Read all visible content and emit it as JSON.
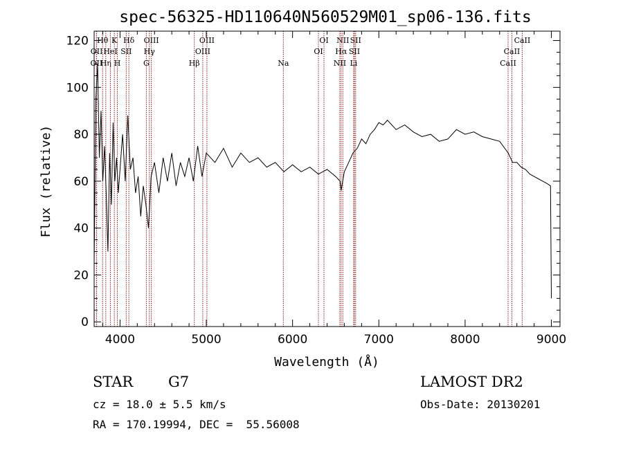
{
  "chart_data": {
    "type": "line",
    "title": "spec-56325-HD110640N560529M01_sp06-136.fits",
    "xlabel": "Wavelength (Å)",
    "ylabel": "Flux (relative)",
    "xlim": [
      3700,
      9100
    ],
    "ylim": [
      -2,
      124
    ],
    "xticks": [
      4000,
      5000,
      6000,
      7000,
      8000,
      9000
    ],
    "yticks": [
      0,
      20,
      40,
      60,
      80,
      100,
      120
    ],
    "series": [
      {
        "name": "flux",
        "x": [
          3700,
          3720,
          3740,
          3760,
          3780,
          3800,
          3820,
          3840,
          3860,
          3880,
          3900,
          3920,
          3940,
          3960,
          3980,
          4000,
          4030,
          4060,
          4090,
          4120,
          4150,
          4180,
          4210,
          4240,
          4270,
          4300,
          4330,
          4360,
          4400,
          4450,
          4500,
          4550,
          4600,
          4650,
          4700,
          4750,
          4800,
          4850,
          4900,
          4950,
          5000,
          5100,
          5200,
          5300,
          5400,
          5500,
          5600,
          5700,
          5800,
          5900,
          6000,
          6100,
          6200,
          6300,
          6400,
          6500,
          6550,
          6563,
          6600,
          6650,
          6700,
          6750,
          6800,
          6850,
          6900,
          6950,
          7000,
          7050,
          7100,
          7200,
          7300,
          7400,
          7500,
          7600,
          7700,
          7800,
          7900,
          8000,
          8100,
          8200,
          8300,
          8400,
          8500,
          8550,
          8600,
          8650,
          8700,
          8750,
          8800,
          8850,
          8900,
          8950,
          8990,
          9000
        ],
        "y": [
          25,
          95,
          110,
          70,
          90,
          60,
          75,
          55,
          30,
          72,
          50,
          85,
          60,
          70,
          55,
          65,
          80,
          60,
          88,
          65,
          70,
          55,
          62,
          45,
          58,
          50,
          40,
          62,
          68,
          55,
          70,
          60,
          72,
          58,
          68,
          62,
          70,
          60,
          75,
          62,
          72,
          68,
          74,
          66,
          72,
          68,
          70,
          66,
          68,
          64,
          67,
          64,
          66,
          63,
          65,
          62,
          60,
          56,
          64,
          68,
          72,
          74,
          78,
          76,
          80,
          82,
          85,
          84,
          86,
          82,
          84,
          81,
          79,
          80,
          77,
          78,
          82,
          80,
          81,
          79,
          78,
          77,
          72,
          68,
          68,
          66,
          65,
          63,
          62,
          61,
          60,
          59,
          58,
          10
        ]
      }
    ],
    "lines": [
      {
        "label": "OII",
        "x": 3727,
        "row": 2
      },
      {
        "label": "OII",
        "x": 3729,
        "row": 1
      },
      {
        "label": "Hθ",
        "x": 3798,
        "row": 0
      },
      {
        "label": "Hη",
        "x": 3835,
        "row": 2
      },
      {
        "label": "K",
        "x": 3934,
        "row": 0
      },
      {
        "label": "HeI",
        "x": 3889,
        "row": 1
      },
      {
        "label": "H",
        "x": 3969,
        "row": 2
      },
      {
        "label": "SII",
        "x": 4072,
        "row": 1
      },
      {
        "label": "Hδ",
        "x": 4102,
        "row": 0
      },
      {
        "label": "OIII",
        "x": 4363,
        "row": 0
      },
      {
        "label": "Hγ",
        "x": 4340,
        "row": 1
      },
      {
        "label": "G",
        "x": 4305,
        "row": 2
      },
      {
        "label": "Hβ",
        "x": 4861,
        "row": 2
      },
      {
        "label": "OIII",
        "x": 5007,
        "row": 0
      },
      {
        "label": "OIII",
        "x": 4959,
        "row": 1
      },
      {
        "label": "Na",
        "x": 5893,
        "row": 2
      },
      {
        "label": "OI",
        "x": 6364,
        "row": 0
      },
      {
        "label": "OI",
        "x": 6300,
        "row": 1
      },
      {
        "label": "NII",
        "x": 6583,
        "row": 0
      },
      {
        "label": "Hα",
        "x": 6563,
        "row": 1
      },
      {
        "label": "NII",
        "x": 6548,
        "row": 2
      },
      {
        "label": "SII",
        "x": 6731,
        "row": 0
      },
      {
        "label": "SII",
        "x": 6717,
        "row": 1
      },
      {
        "label": "Li",
        "x": 6708,
        "row": 2
      },
      {
        "label": "CaII",
        "x": 8662,
        "row": 0
      },
      {
        "label": "CaII",
        "x": 8542,
        "row": 1
      },
      {
        "label": "CaII",
        "x": 8498,
        "row": 2
      }
    ],
    "line_color": "#8b1a1a"
  },
  "info": {
    "class": "STAR",
    "subclass": "G7",
    "survey": "LAMOST DR2",
    "cz": "cz = 18.0 ± 5.5 km/s",
    "obsdate": "Obs-Date: 20130201",
    "radec": "RA = 170.19994, DEC =  55.56008"
  }
}
